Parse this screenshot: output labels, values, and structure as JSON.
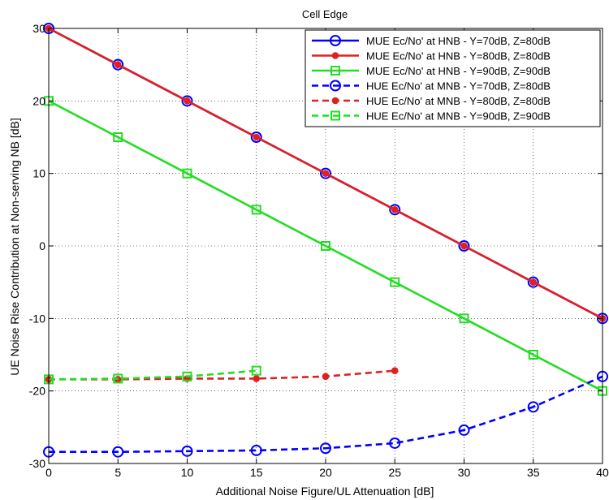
{
  "chart_data": {
    "type": "line",
    "title": "Cell Edge",
    "xlabel": "Additional Noise Figure/UL Attenuation [dB]",
    "ylabel": "UE Noise Rise Contribution at Non-serving NB [dB]",
    "xlim": [
      0,
      40
    ],
    "ylim": [
      -30,
      30
    ],
    "xticks": [
      0,
      5,
      10,
      15,
      20,
      25,
      30,
      35,
      40
    ],
    "yticks": [
      -30,
      -20,
      -10,
      0,
      10,
      20,
      30
    ],
    "grid": true,
    "legend_position": "top-right",
    "series": [
      {
        "name": "MUE Ec/No' at HNB - Y=70dB, Z=80dB",
        "color": "#0000ff",
        "dash": "solid",
        "marker": "circle",
        "x": [
          0,
          5,
          10,
          15,
          20,
          25,
          30,
          35,
          40
        ],
        "y": [
          30,
          25,
          20,
          15,
          10,
          5,
          0,
          -5,
          -10
        ]
      },
      {
        "name": "MUE Ec/No' at HNB - Y=80dB, Z=80dB",
        "color": "#e02020",
        "dash": "solid",
        "marker": "dot",
        "x": [
          0,
          5,
          10,
          15,
          20,
          25,
          30,
          35,
          40
        ],
        "y": [
          30,
          25,
          20,
          15,
          10,
          5,
          0,
          -5,
          -10
        ]
      },
      {
        "name": "MUE Ec/No' at HNB - Y=90dB, Z=90dB",
        "color": "#22dd22",
        "dash": "solid",
        "marker": "square",
        "x": [
          0,
          5,
          10,
          15,
          20,
          25,
          30,
          35,
          40
        ],
        "y": [
          20,
          15,
          10,
          5,
          0,
          -5,
          -10,
          -15,
          -20
        ]
      },
      {
        "name": "HUE Ec/No' at MNB - Y=70dB, Z=80dB",
        "color": "#0000ff",
        "dash": "dashed",
        "marker": "circle",
        "x": [
          0,
          5,
          10,
          15,
          20,
          25,
          30,
          35,
          40
        ],
        "y": [
          -28.4,
          -28.4,
          -28.3,
          -28.2,
          -27.9,
          -27.2,
          -25.4,
          -22.2,
          -18.0
        ]
      },
      {
        "name": "HUE Ec/No' at MNB - Y=80dB, Z=80dB",
        "color": "#e02020",
        "dash": "dashed",
        "marker": "dot",
        "x": [
          0,
          5,
          10,
          15,
          20,
          25
        ],
        "y": [
          -18.4,
          -18.4,
          -18.3,
          -18.3,
          -18.0,
          -17.2
        ]
      },
      {
        "name": "HUE Ec/No' at MNB - Y=90dB, Z=90dB",
        "color": "#22dd22",
        "dash": "dashed",
        "marker": "square",
        "x": [
          0,
          5,
          10,
          15
        ],
        "y": [
          -18.4,
          -18.3,
          -18.0,
          -17.2
        ]
      }
    ]
  }
}
